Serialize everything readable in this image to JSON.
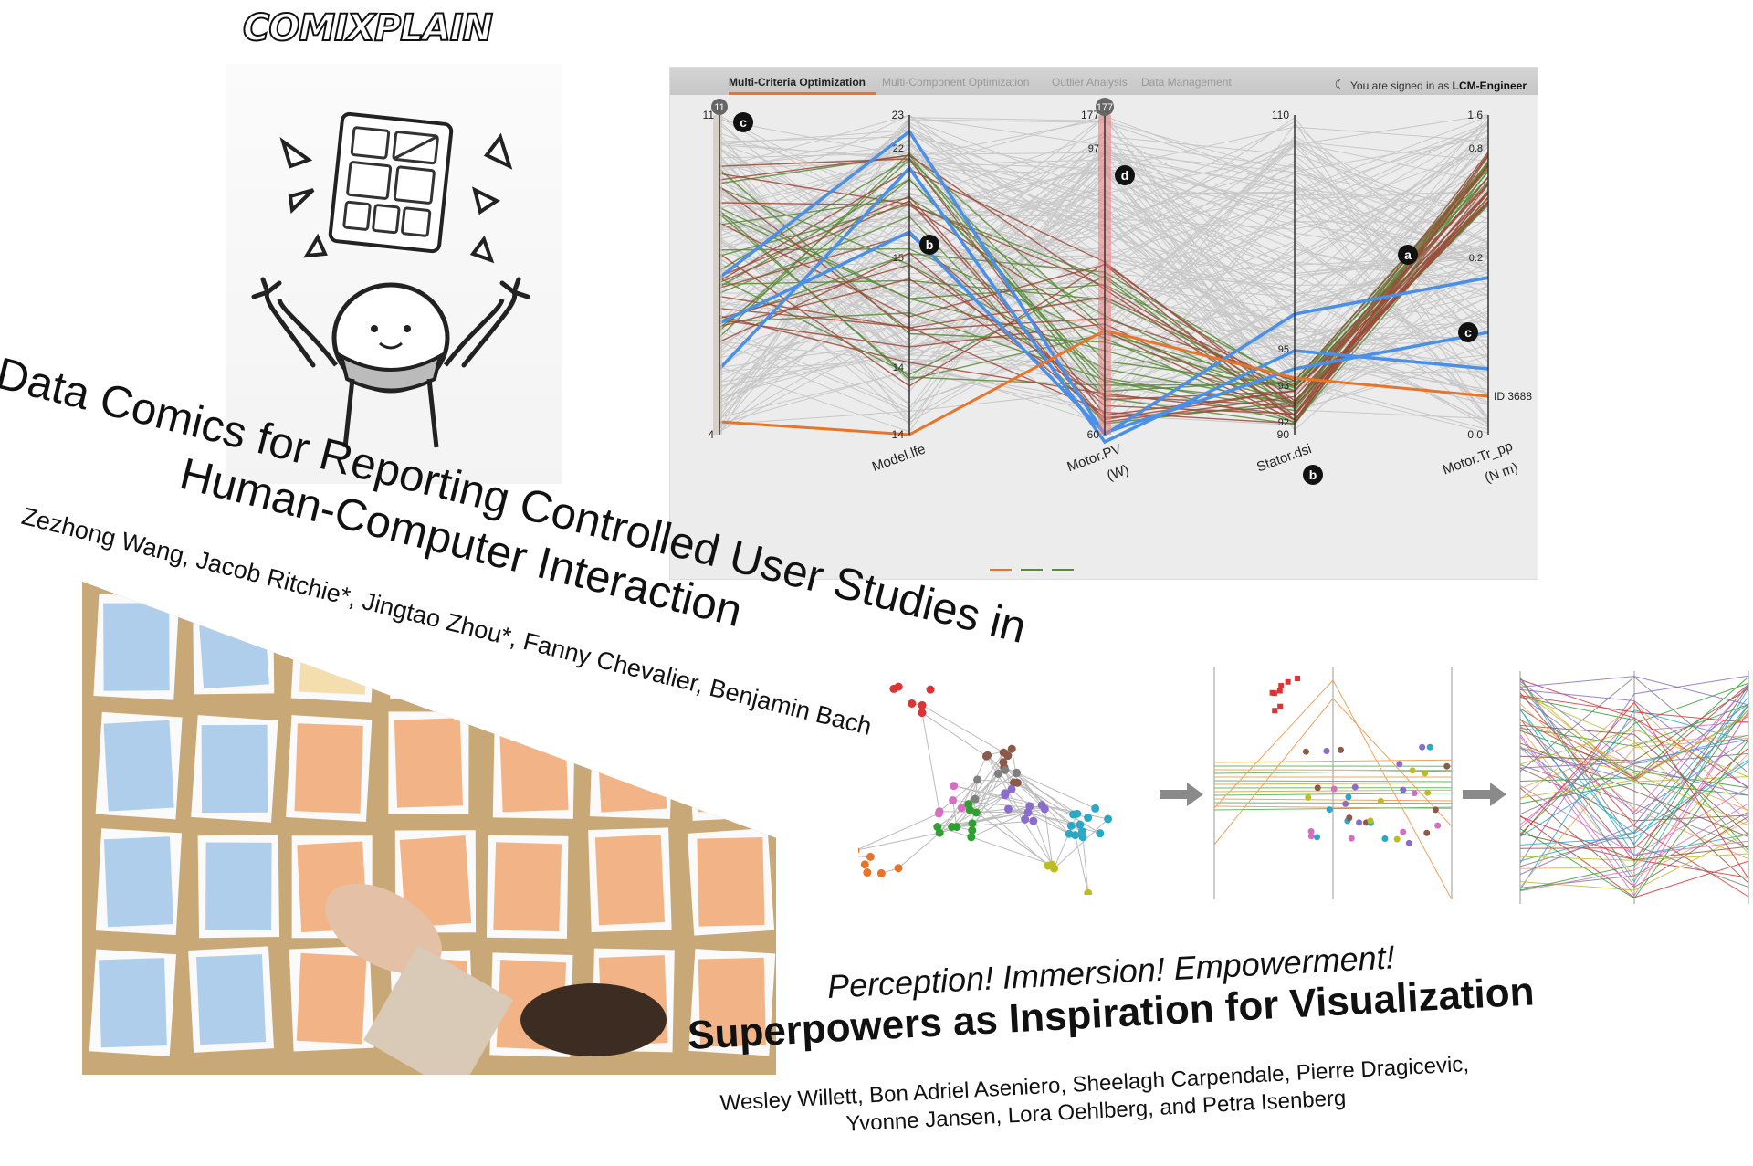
{
  "logo": {
    "text": "COMIXPLAIN"
  },
  "data_comics": {
    "title_line1": "Data Comics for Reporting Controlled User Studies in",
    "title_line2": "Human-Computer Interaction",
    "authors": "Zezhong Wang, Jacob Ritchie*, Jingtao Zhou*, Fanny Chevalier, Benjamin Bach"
  },
  "pc_screenshot": {
    "tabs": [
      "Multi-Criteria Optimization",
      "Multi-Component Optimization",
      "Outlier Analysis",
      "Data Management"
    ],
    "active_tab": "Multi-Criteria Optimization",
    "signin_prefix": "You are signed in as",
    "signin_user": "LCM-Engineer",
    "axes": [
      {
        "name": "",
        "top": "11",
        "bottom": "4"
      },
      {
        "name": "Model.lfe",
        "top": "23",
        "bottom": "14",
        "mid": [
          "22",
          "15",
          "14"
        ]
      },
      {
        "name": "Motor.PV\n(W)",
        "top": "177",
        "bottom": "60",
        "mid": [
          "97"
        ]
      },
      {
        "name": "Stator.dsi",
        "top": "110",
        "bottom": "90",
        "mid": [
          "95",
          "93",
          "92"
        ]
      },
      {
        "name": "Motor.Tr_pp\n(N m)",
        "top": "1.6",
        "bottom": "0.0",
        "mid": [
          "0.8",
          "0.2"
        ]
      }
    ],
    "markers": [
      "a",
      "b",
      "b",
      "c",
      "c",
      "d"
    ],
    "id_label": "ID 3688",
    "badge_11": "11",
    "badge_177": "177",
    "axis_labels": [
      "Model.lfe",
      "Motor.PV",
      "(W)",
      "Stator.dsi",
      "Motor.Tr_pp",
      "(N m)"
    ],
    "colors": {
      "orange": "#e8742a",
      "blue": "#4a8fe8",
      "green": "#5b8a3a",
      "brown": "#9b4a3a",
      "red": "#e88080",
      "purple": "#8a5ac8"
    }
  },
  "superpowers": {
    "tagline": "Perception! Immersion! Empowerment!",
    "title": "Superpowers as Inspiration for Visualization",
    "authors_line1": "Wesley Willett, Bon Adriel Aseniero, Sheelagh Carpendale, Pierre Dragicevic,",
    "authors_line2": "Yvonne Jansen, Lora Oehlberg, and Petra Isenberg"
  }
}
